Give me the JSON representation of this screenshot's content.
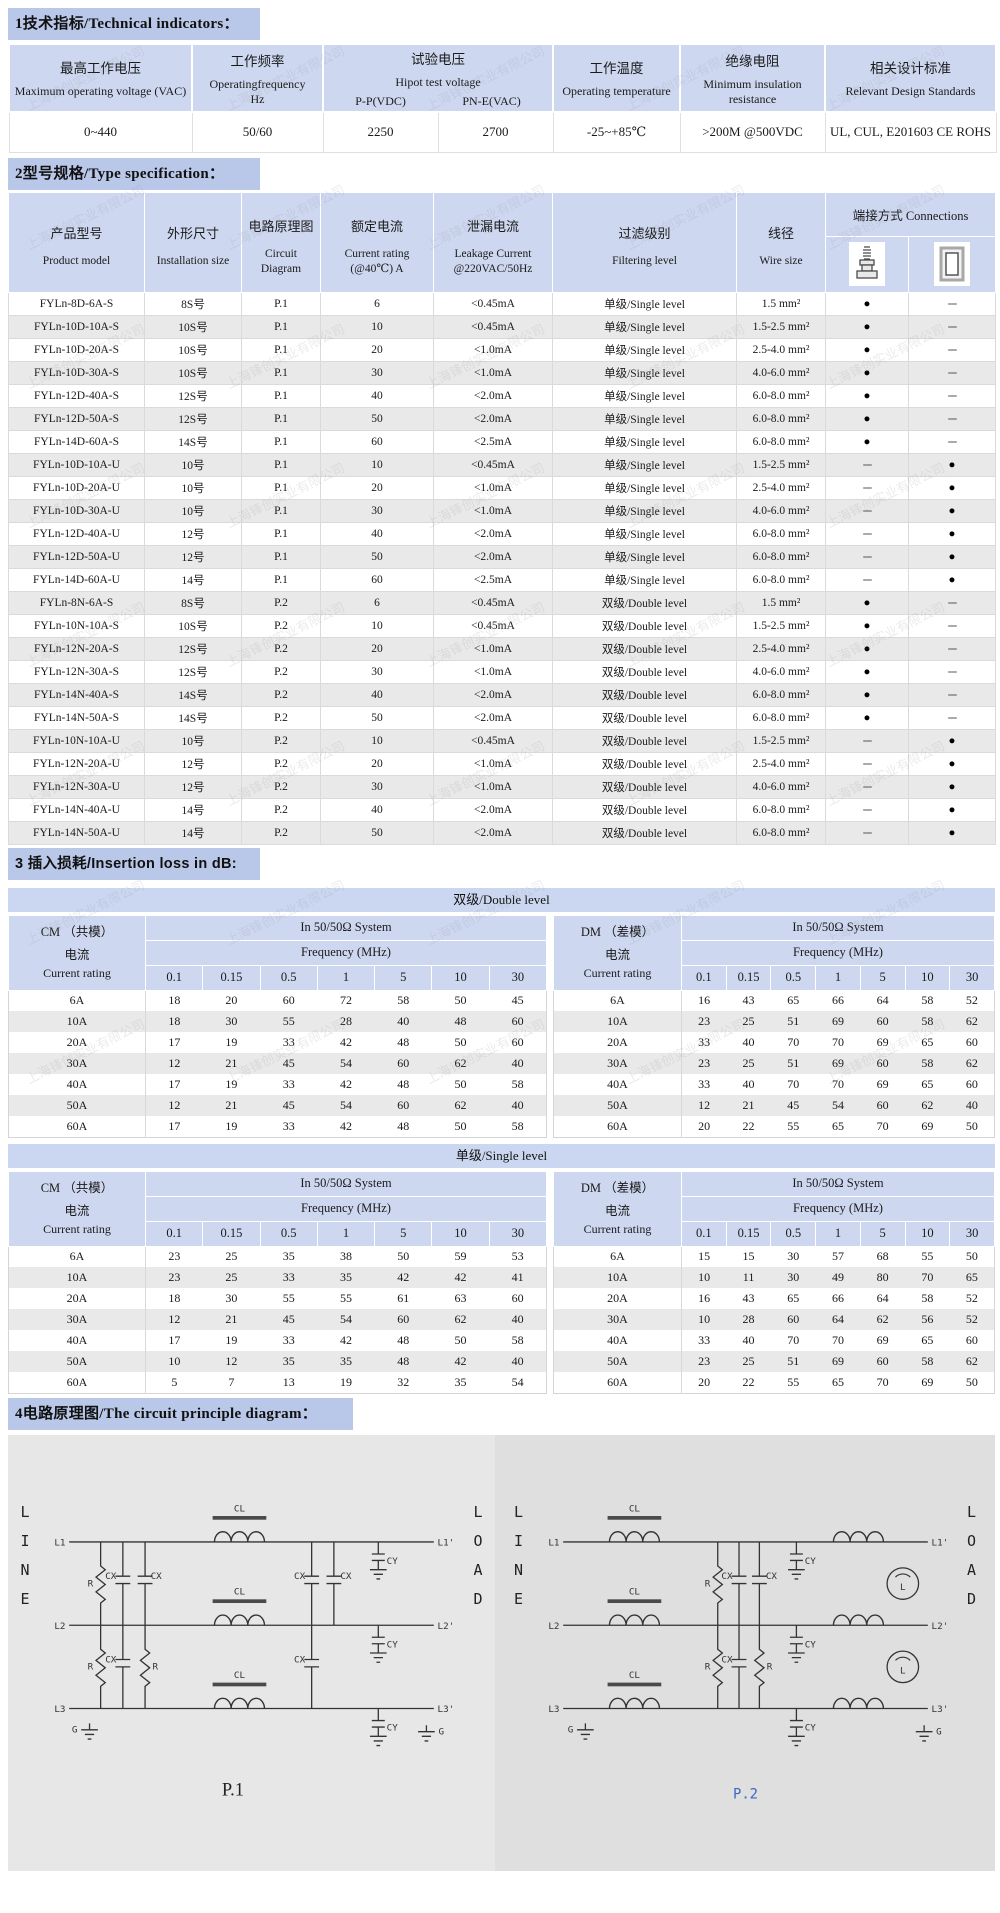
{
  "watermark": "上海锋创实业有限公司",
  "sections": {
    "s1": "1技术指标/Technical indicators：",
    "s2": "2型号规格/Type specification：",
    "s3": "3 插入损耗/Insertion loss in dB:",
    "s4": "4电路原理图/The circuit principle diagram："
  },
  "tech": {
    "h1_cn": "最高工作电压",
    "h1_en": "Maximum operating voltage (VAC)",
    "h2_cn": "工作频率",
    "h2_en": "Operatingfrequency",
    "h2_en2": "Hz",
    "h3_cn": "试验电压",
    "h3_en": "Hipot test voltage",
    "h3_sub1": "P-P(VDC)",
    "h3_sub2": "PN-E(VAC)",
    "h4_cn": "工作温度",
    "h4_en": "Operating temperature",
    "h5_cn": "绝缘电阻",
    "h5_en": "Minimum insulation resistance",
    "h6_cn": "相关设计标准",
    "h6_en": "Relevant Design Standards",
    "v1": "0~440",
    "v2": "50/60",
    "v3a": "2250",
    "v3b": "2700",
    "v4": "-25~+85℃",
    "v5": ">200M @500VDC",
    "v6": "UL, CUL, E201603  CE ROHS"
  },
  "spec": {
    "head": {
      "model_cn": "产品型号",
      "model_en": "Product model",
      "size_cn": "外形尺寸",
      "size_en": "Installation size",
      "circuit_cn": "电路原理图",
      "circuit_en": "Circuit Diagram",
      "current_cn": "额定电流",
      "current_en": "Current rating (@40℃) A",
      "leak_cn": "泄漏电流",
      "leak_en": "Leakage Current @220VAC/50Hz",
      "filter_cn": "过滤级别",
      "filter_en": "Filtering level",
      "wire_cn": "线径",
      "wire_en": "Wire size",
      "conn": "端接方式 Connections"
    },
    "rows": [
      [
        "FYLn-8D-6A-S",
        "8S号",
        "P.1",
        "6",
        "<0.45mA",
        "单级/Single level",
        "1.5 mm²",
        "●",
        "---"
      ],
      [
        "FYLn-10D-10A-S",
        "10S号",
        "P.1",
        "10",
        "<0.45mA",
        "单级/Single level",
        "1.5-2.5 mm²",
        "●",
        "---"
      ],
      [
        "FYLn-10D-20A-S",
        "10S号",
        "P.1",
        "20",
        "<1.0mA",
        "单级/Single level",
        "2.5-4.0 mm²",
        "●",
        "---"
      ],
      [
        "FYLn-10D-30A-S",
        "10S号",
        "P.1",
        "30",
        "<1.0mA",
        "单级/Single level",
        "4.0-6.0 mm²",
        "●",
        "---"
      ],
      [
        "FYLn-12D-40A-S",
        "12S号",
        "P.1",
        "40",
        "<2.0mA",
        "单级/Single level",
        "6.0-8.0 mm²",
        "●",
        "---"
      ],
      [
        "FYLn-12D-50A-S",
        "12S号",
        "P.1",
        "50",
        "<2.0mA",
        "单级/Single level",
        "6.0-8.0 mm²",
        "●",
        "---"
      ],
      [
        "FYLn-14D-60A-S",
        "14S号",
        "P.1",
        "60",
        "<2.5mA",
        "单级/Single level",
        "6.0-8.0 mm²",
        "●",
        "---"
      ],
      [
        "FYLn-10D-10A-U",
        "10号",
        "P.1",
        "10",
        "<0.45mA",
        "单级/Single level",
        "1.5-2.5 mm²",
        "---",
        "●"
      ],
      [
        "FYLn-10D-20A-U",
        "10号",
        "P.1",
        "20",
        "<1.0mA",
        "单级/Single level",
        "2.5-4.0 mm²",
        "---",
        "●"
      ],
      [
        "FYLn-10D-30A-U",
        "10号",
        "P.1",
        "30",
        "<1.0mA",
        "单级/Single level",
        "4.0-6.0 mm²",
        "---",
        "●"
      ],
      [
        "FYLn-12D-40A-U",
        "12号",
        "P.1",
        "40",
        "<2.0mA",
        "单级/Single level",
        "6.0-8.0 mm²",
        "---",
        "●"
      ],
      [
        "FYLn-12D-50A-U",
        "12号",
        "P.1",
        "50",
        "<2.0mA",
        "单级/Single level",
        "6.0-8.0 mm²",
        "---",
        "●"
      ],
      [
        "FYLn-14D-60A-U",
        "14号",
        "P.1",
        "60",
        "<2.5mA",
        "单级/Single level",
        "6.0-8.0 mm²",
        "---",
        "●"
      ],
      [
        "FYLn-8N-6A-S",
        "8S号",
        "P.2",
        "6",
        "<0.45mA",
        "双级/Double level",
        "1.5 mm²",
        "●",
        "---"
      ],
      [
        "FYLn-10N-10A-S",
        "10S号",
        "P.2",
        "10",
        "<0.45mA",
        "双级/Double level",
        "1.5-2.5 mm²",
        "●",
        "---"
      ],
      [
        "FYLn-12N-20A-S",
        "12S号",
        "P.2",
        "20",
        "<1.0mA",
        "双级/Double level",
        "2.5-4.0 mm²",
        "●",
        "---"
      ],
      [
        "FYLn-12N-30A-S",
        "12S号",
        "P.2",
        "30",
        "<1.0mA",
        "双级/Double level",
        "4.0-6.0 mm²",
        "●",
        "---"
      ],
      [
        "FYLn-14N-40A-S",
        "14S号",
        "P.2",
        "40",
        "<2.0mA",
        "双级/Double level",
        "6.0-8.0 mm²",
        "●",
        "---"
      ],
      [
        "FYLn-14N-50A-S",
        "14S号",
        "P.2",
        "50",
        "<2.0mA",
        "双级/Double level",
        "6.0-8.0 mm²",
        "●",
        "---"
      ],
      [
        "FYLn-10N-10A-U",
        "10号",
        "P.2",
        "10",
        "<0.45mA",
        "双级/Double level",
        "1.5-2.5 mm²",
        "---",
        "●"
      ],
      [
        "FYLn-12N-20A-U",
        "12号",
        "P.2",
        "20",
        "<1.0mA",
        "双级/Double level",
        "2.5-4.0 mm²",
        "---",
        "●"
      ],
      [
        "FYLn-12N-30A-U",
        "12号",
        "P.2",
        "30",
        "<1.0mA",
        "双级/Double level",
        "4.0-6.0 mm²",
        "---",
        "●"
      ],
      [
        "FYLn-14N-40A-U",
        "14号",
        "P.2",
        "40",
        "<2.0mA",
        "双级/Double level",
        "6.0-8.0 mm²",
        "---",
        "●"
      ],
      [
        "FYLn-14N-50A-U",
        "14号",
        "P.2",
        "50",
        "<2.0mA",
        "双级/Double level",
        "6.0-8.0 mm²",
        "---",
        "●"
      ]
    ]
  },
  "loss": {
    "double_banner": "双级/Double level",
    "single_banner": "单级/Single level",
    "cm_label": "CM （共模）",
    "dm_label": "DM （差模）",
    "current_cn": "电流",
    "current_en": "Current rating",
    "system": "In 50/50Ω System",
    "freq": "Frequency (MHz)",
    "freqs": [
      "0.1",
      "0.15",
      "0.5",
      "1",
      "5",
      "10",
      "30"
    ],
    "double_cm_rows": [
      [
        "6A",
        "18",
        "20",
        "60",
        "72",
        "58",
        "50",
        "45"
      ],
      [
        "10A",
        "18",
        "30",
        "55",
        "28",
        "40",
        "48",
        "60"
      ],
      [
        "20A",
        "17",
        "19",
        "33",
        "42",
        "48",
        "50",
        "60"
      ],
      [
        "30A",
        "12",
        "21",
        "45",
        "54",
        "60",
        "62",
        "40"
      ],
      [
        "40A",
        "17",
        "19",
        "33",
        "42",
        "48",
        "50",
        "58"
      ],
      [
        "50A",
        "12",
        "21",
        "45",
        "54",
        "60",
        "62",
        "40"
      ],
      [
        "60A",
        "17",
        "19",
        "33",
        "42",
        "48",
        "50",
        "58"
      ]
    ],
    "double_dm_rows": [
      [
        "6A",
        "16",
        "43",
        "65",
        "66",
        "64",
        "58",
        "52"
      ],
      [
        "10A",
        "23",
        "25",
        "51",
        "69",
        "60",
        "58",
        "62"
      ],
      [
        "20A",
        "33",
        "40",
        "70",
        "70",
        "69",
        "65",
        "60"
      ],
      [
        "30A",
        "23",
        "25",
        "51",
        "69",
        "60",
        "58",
        "62"
      ],
      [
        "40A",
        "33",
        "40",
        "70",
        "70",
        "69",
        "65",
        "60"
      ],
      [
        "50A",
        "12",
        "21",
        "45",
        "54",
        "60",
        "62",
        "40"
      ],
      [
        "60A",
        "20",
        "22",
        "55",
        "65",
        "70",
        "69",
        "50"
      ]
    ],
    "single_cm_rows": [
      [
        "6A",
        "23",
        "25",
        "35",
        "38",
        "50",
        "59",
        "53"
      ],
      [
        "10A",
        "23",
        "25",
        "33",
        "35",
        "42",
        "42",
        "41"
      ],
      [
        "20A",
        "18",
        "30",
        "55",
        "55",
        "61",
        "63",
        "60"
      ],
      [
        "30A",
        "12",
        "21",
        "45",
        "54",
        "60",
        "62",
        "40"
      ],
      [
        "40A",
        "17",
        "19",
        "33",
        "42",
        "48",
        "50",
        "58"
      ],
      [
        "50A",
        "10",
        "12",
        "35",
        "35",
        "48",
        "42",
        "40"
      ],
      [
        "60A",
        "5",
        "7",
        "13",
        "19",
        "32",
        "35",
        "54"
      ]
    ],
    "single_dm_rows": [
      [
        "6A",
        "15",
        "15",
        "30",
        "57",
        "68",
        "55",
        "50"
      ],
      [
        "10A",
        "10",
        "11",
        "30",
        "49",
        "80",
        "70",
        "65"
      ],
      [
        "20A",
        "16",
        "43",
        "65",
        "66",
        "64",
        "58",
        "52"
      ],
      [
        "30A",
        "10",
        "28",
        "60",
        "64",
        "62",
        "56",
        "52"
      ],
      [
        "40A",
        "33",
        "40",
        "70",
        "70",
        "69",
        "65",
        "60"
      ],
      [
        "50A",
        "23",
        "25",
        "51",
        "69",
        "60",
        "58",
        "62"
      ],
      [
        "60A",
        "20",
        "22",
        "55",
        "65",
        "70",
        "69",
        "50"
      ]
    ]
  },
  "circuit": {
    "line": "LINE",
    "load": "LOAD",
    "p1": "P.1",
    "p2": "P.2",
    "labels": {
      "l1": "L1",
      "l2": "L2",
      "l3": "L3",
      "l1o": "L1'",
      "l2o": "L2'",
      "l3o": "L3'",
      "g": "G",
      "r": "R",
      "cx": "CX",
      "cl": "CL",
      "cy": "CY",
      "l": "L"
    }
  }
}
